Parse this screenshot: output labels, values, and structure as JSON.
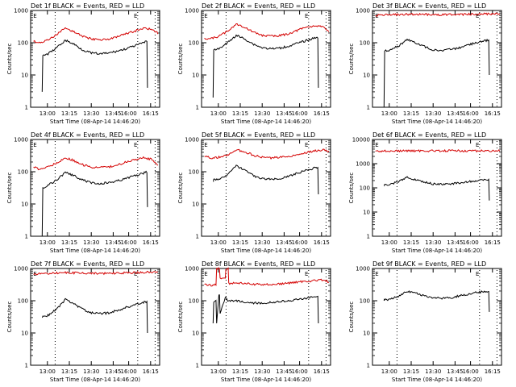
{
  "chart_data": [
    {
      "type": "line",
      "title": "Det 1f BLACK = Events, RED = LLD",
      "xlabel": "Start Time (08-Apr-14 14:46:20)",
      "ylabel": "Counts/sec",
      "yscale": "log",
      "ylim": [
        1,
        1000
      ],
      "xlim": [
        "12:45",
        "16:28"
      ],
      "xticks": [
        "13:00",
        "13:15",
        "13:30",
        "13:45",
        "16:00",
        "16:15"
      ],
      "yticks": [
        "1",
        "10",
        "100",
        "1000"
      ],
      "markers": [
        "E",
        "E"
      ],
      "series": [
        {
          "color": "#d40000",
          "x": [
            "12:50",
            "13:00",
            "13:15",
            "13:30",
            "13:45",
            "14:00",
            "14:15",
            "14:30",
            "14:45",
            "15:00",
            "15:15",
            "15:30",
            "15:45",
            "16:00",
            "16:15",
            "16:25"
          ],
          "values": [
            110,
            100,
            120,
            180,
            280,
            220,
            160,
            130,
            125,
            130,
            150,
            190,
            230,
            280,
            260,
            200
          ]
        },
        {
          "color": "#000000",
          "x": [
            "13:05",
            "13:06",
            "13:15",
            "13:30",
            "13:45",
            "14:00",
            "14:15",
            "14:30",
            "14:45",
            "15:00",
            "15:15",
            "15:30",
            "15:45",
            "16:00",
            "16:06",
            "16:07"
          ],
          "values": [
            3,
            40,
            45,
            70,
            120,
            90,
            60,
            48,
            45,
            48,
            55,
            65,
            80,
            100,
            110,
            4
          ]
        }
      ]
    },
    {
      "type": "line",
      "title": "Det 2f BLACK = Events, RED = LLD",
      "xlabel": "Start Time (08-Apr-14 14:46:20)",
      "ylabel": "Counts/sec",
      "yscale": "log",
      "ylim": [
        1,
        1000
      ],
      "xlim": [
        "12:45",
        "16:28"
      ],
      "xticks": [
        "13:00",
        "13:15",
        "13:30",
        "13:45",
        "16:00",
        "16:15"
      ],
      "yticks": [
        "1",
        "10",
        "100",
        "1000"
      ],
      "markers": [
        "E",
        "E"
      ],
      "series": [
        {
          "color": "#d40000",
          "x": [
            "12:50",
            "13:00",
            "13:15",
            "13:30",
            "13:45",
            "14:00",
            "14:15",
            "14:30",
            "14:45",
            "15:00",
            "15:15",
            "15:30",
            "15:45",
            "16:00",
            "16:15",
            "16:25"
          ],
          "values": [
            140,
            130,
            160,
            230,
            380,
            300,
            210,
            170,
            160,
            165,
            190,
            240,
            300,
            340,
            300,
            220
          ]
        },
        {
          "color": "#000000",
          "x": [
            "13:05",
            "13:06",
            "13:15",
            "13:30",
            "13:45",
            "14:00",
            "14:15",
            "14:30",
            "14:45",
            "15:00",
            "15:15",
            "15:30",
            "15:45",
            "16:00",
            "16:06",
            "16:07"
          ],
          "values": [
            2,
            60,
            65,
            100,
            170,
            130,
            90,
            70,
            65,
            68,
            78,
            95,
            115,
            140,
            150,
            4
          ]
        }
      ]
    },
    {
      "type": "line",
      "title": "Det 3f BLACK = Events, RED = LLD",
      "xlabel": "Start Time (08-Apr-14 14:46:20)",
      "ylabel": "Counts/sec",
      "yscale": "log",
      "ylim": [
        1,
        1000
      ],
      "xlim": [
        "12:45",
        "16:28"
      ],
      "xticks": [
        "13:00",
        "13:15",
        "13:30",
        "13:45",
        "16:00",
        "16:15"
      ],
      "yticks": [
        "1",
        "10",
        "100",
        "1000"
      ],
      "markers": [
        "E",
        "E"
      ],
      "series": [
        {
          "color": "#d40000",
          "x": [
            "12:50",
            "13:00",
            "13:15",
            "13:30",
            "13:45",
            "14:00",
            "14:15",
            "14:30",
            "14:45",
            "15:00",
            "15:15",
            "15:30",
            "15:45",
            "16:00",
            "16:15",
            "16:25"
          ],
          "values": [
            700,
            720,
            730,
            740,
            760,
            760,
            750,
            740,
            740,
            745,
            750,
            760,
            770,
            780,
            790,
            750
          ]
        },
        {
          "color": "#000000",
          "x": [
            "13:05",
            "13:06",
            "13:15",
            "13:30",
            "13:45",
            "14:00",
            "14:15",
            "14:30",
            "14:45",
            "15:00",
            "15:15",
            "15:30",
            "15:45",
            "16:00",
            "16:06",
            "16:07"
          ],
          "values": [
            1,
            55,
            60,
            80,
            125,
            100,
            75,
            60,
            58,
            62,
            70,
            85,
            100,
            115,
            120,
            10
          ]
        }
      ]
    },
    {
      "type": "line",
      "title": "Det 4f BLACK = Events, RED = LLD",
      "xlabel": "Start Time (08-Apr-14 14:46:20)",
      "ylabel": "Counts/sec",
      "yscale": "log",
      "ylim": [
        1,
        1000
      ],
      "xlim": [
        "12:45",
        "16:28"
      ],
      "xticks": [
        "13:00",
        "13:15",
        "13:30",
        "13:45",
        "16:00",
        "16:15"
      ],
      "yticks": [
        "1",
        "10",
        "100",
        "1000"
      ],
      "markers": [
        "E",
        "E"
      ],
      "series": [
        {
          "color": "#d40000",
          "x": [
            "12:50",
            "13:00",
            "13:15",
            "13:30",
            "13:45",
            "14:00",
            "14:15",
            "14:30",
            "14:45",
            "15:00",
            "15:15",
            "15:30",
            "15:45",
            "16:00",
            "16:15",
            "16:25"
          ],
          "values": [
            140,
            120,
            140,
            190,
            270,
            220,
            165,
            140,
            135,
            140,
            160,
            200,
            240,
            270,
            240,
            160
          ]
        },
        {
          "color": "#000000",
          "x": [
            "13:05",
            "13:06",
            "13:15",
            "13:30",
            "13:45",
            "14:00",
            "14:15",
            "14:30",
            "14:45",
            "15:00",
            "15:15",
            "15:30",
            "15:45",
            "16:00",
            "16:06",
            "16:07"
          ],
          "values": [
            1,
            32,
            38,
            55,
            95,
            75,
            55,
            45,
            43,
            46,
            52,
            62,
            75,
            90,
            100,
            8
          ]
        }
      ]
    },
    {
      "type": "line",
      "title": "Det 5f BLACK = Events, RED = LLD",
      "xlabel": "Start Time (08-Apr-14 14:46:20)",
      "ylabel": "Counts/sec",
      "yscale": "log",
      "ylim": [
        1,
        1000
      ],
      "xlim": [
        "12:45",
        "16:28"
      ],
      "xticks": [
        "13:00",
        "13:15",
        "13:30",
        "13:45",
        "16:00",
        "16:15"
      ],
      "yticks": [
        "1",
        "10",
        "100",
        "1000"
      ],
      "markers": [
        "E",
        "E"
      ],
      "series": [
        {
          "color": "#d40000",
          "x": [
            "12:50",
            "13:00",
            "13:15",
            "13:30",
            "13:45",
            "14:00",
            "14:15",
            "14:30",
            "14:45",
            "15:00",
            "15:15",
            "15:30",
            "15:45",
            "16:00",
            "16:15",
            "16:25"
          ],
          "values": [
            300,
            270,
            280,
            330,
            480,
            420,
            320,
            280,
            270,
            275,
            300,
            340,
            390,
            440,
            480,
            420
          ]
        },
        {
          "color": "#000000",
          "x": [
            "13:05",
            "13:06",
            "13:15",
            "13:30",
            "13:45",
            "14:00",
            "14:15",
            "14:30",
            "14:45",
            "15:00",
            "15:15",
            "15:30",
            "15:45",
            "16:00",
            "16:06",
            "16:07"
          ],
          "values": [
            50,
            55,
            58,
            80,
            150,
            110,
            75,
            60,
            58,
            62,
            72,
            90,
            110,
            130,
            140,
            20
          ]
        }
      ]
    },
    {
      "type": "line",
      "title": "Det 6f BLACK = Events, RED = LLD",
      "xlabel": "Start Time (08-Apr-14 14:46:20)",
      "ylabel": "Counts/sec",
      "yscale": "log",
      "ylim": [
        1,
        10000
      ],
      "xlim": [
        "12:45",
        "16:28"
      ],
      "xticks": [
        "13:00",
        "13:15",
        "13:30",
        "13:45",
        "16:00",
        "16:15"
      ],
      "yticks": [
        "1",
        "10",
        "100",
        "1000",
        "10000"
      ],
      "markers": [
        "E",
        "E"
      ],
      "series": [
        {
          "color": "#d40000",
          "x": [
            "12:50",
            "13:00",
            "13:15",
            "13:30",
            "13:45",
            "14:00",
            "14:15",
            "14:30",
            "14:45",
            "15:00",
            "15:15",
            "15:30",
            "15:45",
            "16:00",
            "16:15",
            "16:25"
          ],
          "values": [
            3300,
            3300,
            3350,
            3350,
            3400,
            3400,
            3400,
            3400,
            3400,
            3400,
            3400,
            3400,
            3400,
            3400,
            3400,
            3400
          ]
        },
        {
          "color": "#000000",
          "x": [
            "13:05",
            "13:06",
            "13:15",
            "13:30",
            "13:45",
            "14:00",
            "14:15",
            "14:30",
            "14:45",
            "15:00",
            "15:15",
            "15:30",
            "15:45",
            "16:00",
            "16:06",
            "16:07"
          ],
          "values": [
            120,
            130,
            140,
            180,
            270,
            220,
            170,
            145,
            140,
            145,
            160,
            180,
            200,
            220,
            230,
            30
          ]
        }
      ]
    },
    {
      "type": "line",
      "title": "Det 7f BLACK = Events, RED = LLD",
      "xlabel": "Start Time (08-Apr-14 14:46:20)",
      "ylabel": "Counts/sec",
      "yscale": "log",
      "ylim": [
        1,
        1000
      ],
      "xlim": [
        "12:45",
        "16:28"
      ],
      "xticks": [
        "13:00",
        "13:15",
        "13:30",
        "13:45",
        "16:00",
        "16:15"
      ],
      "yticks": [
        "1",
        "10",
        "100",
        "1000"
      ],
      "markers": [
        "E",
        "E"
      ],
      "series": [
        {
          "color": "#d40000",
          "x": [
            "12:50",
            "13:00",
            "13:15",
            "13:30",
            "13:45",
            "14:00",
            "14:15",
            "14:30",
            "14:45",
            "15:00",
            "15:15",
            "15:30",
            "15:45",
            "16:00",
            "16:15",
            "16:25"
          ],
          "values": [
            650,
            680,
            700,
            720,
            740,
            730,
            720,
            710,
            700,
            710,
            720,
            730,
            740,
            760,
            780,
            750
          ]
        },
        {
          "color": "#000000",
          "x": [
            "13:05",
            "13:06",
            "13:15",
            "13:30",
            "13:45",
            "14:00",
            "14:15",
            "14:30",
            "14:45",
            "15:00",
            "15:15",
            "15:30",
            "15:45",
            "16:00",
            "16:06",
            "16:07"
          ],
          "values": [
            30,
            32,
            35,
            55,
            110,
            80,
            55,
            42,
            40,
            42,
            50,
            62,
            75,
            90,
            95,
            10
          ]
        }
      ]
    },
    {
      "type": "line",
      "title": "Det 8f BLACK = Events, RED = LLD",
      "xlabel": "Start Time (08-Apr-14 14:46:20)",
      "ylabel": "Counts/sec",
      "yscale": "log",
      "ylim": [
        1,
        1000
      ],
      "xlim": [
        "12:45",
        "16:28"
      ],
      "xticks": [
        "13:00",
        "13:15",
        "13:30",
        "13:45",
        "16:00",
        "16:15"
      ],
      "yticks": [
        "1",
        "10",
        "100",
        "1000"
      ],
      "markers": [
        "E",
        "E"
      ],
      "series": [
        {
          "color": "#d40000",
          "x": [
            "12:50",
            "13:00",
            "13:10",
            "13:11",
            "13:16",
            "13:17",
            "13:26",
            "13:27",
            "13:31",
            "13:32",
            "13:45",
            "14:00",
            "14:15",
            "14:30",
            "14:45",
            "15:00",
            "15:15",
            "15:30",
            "15:45",
            "16:00",
            "16:15",
            "16:25"
          ],
          "values": [
            320,
            300,
            310,
            1000,
            1000,
            500,
            500,
            1000,
            1000,
            340,
            360,
            340,
            320,
            320,
            320,
            330,
            350,
            380,
            400,
            420,
            450,
            380
          ]
        },
        {
          "color": "#000000",
          "x": [
            "13:05",
            "13:06",
            "13:10",
            "13:11",
            "13:15",
            "13:16",
            "13:17",
            "13:26",
            "13:27",
            "13:30",
            "13:45",
            "14:00",
            "14:15",
            "14:30",
            "14:45",
            "15:00",
            "15:15",
            "15:30",
            "15:45",
            "16:00",
            "16:06",
            "16:07"
          ],
          "values": [
            20,
            90,
            100,
            20,
            150,
            150,
            40,
            120,
            120,
            100,
            100,
            90,
            85,
            85,
            88,
            95,
            100,
            110,
            120,
            130,
            135,
            20
          ]
        }
      ]
    },
    {
      "type": "line",
      "title": "Det 9f BLACK = Events, RED = LLD",
      "xlabel": "Start Time (08-Apr-14 14:46:20)",
      "ylabel": "Counts/sec",
      "yscale": "log",
      "ylim": [
        1,
        1000
      ],
      "xlim": [
        "12:45",
        "16:28"
      ],
      "xticks": [
        "13:00",
        "13:15",
        "13:30",
        "13:45",
        "16:00",
        "16:15"
      ],
      "yticks": [
        "1",
        "10",
        "100",
        "1000"
      ],
      "markers": [
        "E",
        "E"
      ],
      "series": [
        {
          "color": "#000000",
          "x": [
            "13:05",
            "13:06",
            "13:15",
            "13:30",
            "13:45",
            "14:00",
            "14:15",
            "14:30",
            "14:45",
            "15:00",
            "15:15",
            "15:30",
            "15:45",
            "16:00",
            "16:06",
            "16:07"
          ],
          "values": [
            100,
            105,
            110,
            140,
            200,
            170,
            140,
            125,
            120,
            125,
            140,
            160,
            180,
            195,
            200,
            45
          ]
        }
      ]
    }
  ]
}
